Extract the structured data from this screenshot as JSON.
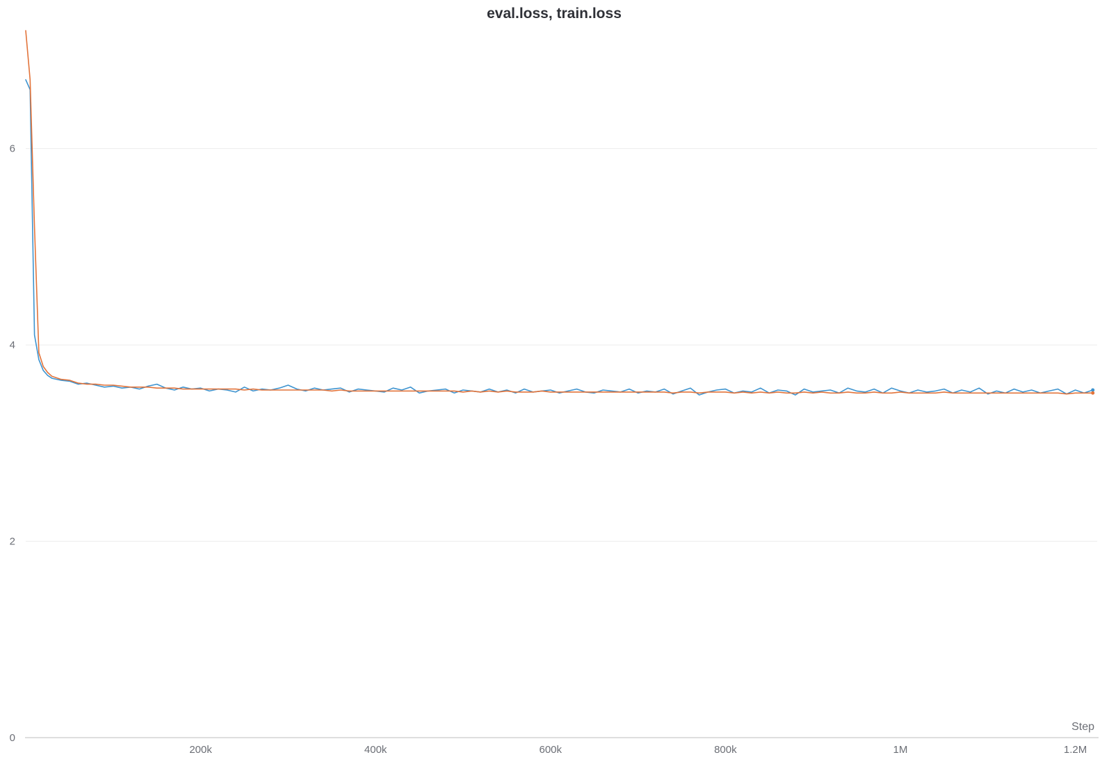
{
  "chart_data": {
    "type": "line",
    "title": "eval.loss, train.loss",
    "xlabel": "Step",
    "ylabel": "",
    "xlim": [
      0,
      1225000
    ],
    "ylim": [
      0,
      7.3
    ],
    "x_ticks": [
      200000,
      400000,
      600000,
      800000,
      1000000,
      1200000
    ],
    "x_tick_labels": [
      "200k",
      "400k",
      "600k",
      "800k",
      "1M",
      "1.2M"
    ],
    "y_ticks": [
      0,
      2,
      4,
      6
    ],
    "y_tick_labels": [
      "0",
      "2",
      "4",
      "6"
    ],
    "grid": true,
    "legend": "none",
    "colors": {
      "eval_loss": "#3d93cf",
      "train_loss": "#e2733a",
      "grid": "#ececec",
      "axis": "#bdbdbd",
      "tick_text": "#6b6e75",
      "title_text": "#2f3137"
    },
    "series": [
      {
        "key": "eval_loss",
        "x": [
          0,
          5000,
          10000,
          15000,
          20000,
          25000,
          30000,
          40000,
          50000,
          60000,
          70000,
          80000,
          90000,
          100000,
          110000,
          120000,
          130000,
          140000,
          150000,
          160000,
          170000,
          180000,
          190000,
          200000,
          210000,
          220000,
          230000,
          240000,
          250000,
          260000,
          270000,
          280000,
          290000,
          300000,
          310000,
          320000,
          330000,
          340000,
          350000,
          360000,
          370000,
          380000,
          390000,
          400000,
          410000,
          420000,
          430000,
          440000,
          450000,
          460000,
          470000,
          480000,
          490000,
          500000,
          510000,
          520000,
          530000,
          540000,
          550000,
          560000,
          570000,
          580000,
          590000,
          600000,
          610000,
          620000,
          630000,
          640000,
          650000,
          660000,
          670000,
          680000,
          690000,
          700000,
          710000,
          720000,
          730000,
          740000,
          750000,
          760000,
          770000,
          780000,
          790000,
          800000,
          810000,
          820000,
          830000,
          840000,
          850000,
          860000,
          870000,
          880000,
          890000,
          900000,
          910000,
          920000,
          930000,
          940000,
          950000,
          960000,
          970000,
          980000,
          990000,
          1000000,
          1010000,
          1020000,
          1030000,
          1040000,
          1050000,
          1060000,
          1070000,
          1080000,
          1090000,
          1100000,
          1110000,
          1120000,
          1130000,
          1140000,
          1150000,
          1160000,
          1170000,
          1180000,
          1190000,
          1200000,
          1210000,
          1220000
        ],
        "y": [
          6.7,
          6.6,
          4.1,
          3.85,
          3.74,
          3.69,
          3.66,
          3.64,
          3.63,
          3.6,
          3.61,
          3.59,
          3.57,
          3.58,
          3.56,
          3.57,
          3.55,
          3.58,
          3.6,
          3.56,
          3.54,
          3.57,
          3.55,
          3.56,
          3.53,
          3.55,
          3.54,
          3.52,
          3.57,
          3.53,
          3.55,
          3.54,
          3.56,
          3.59,
          3.55,
          3.53,
          3.56,
          3.54,
          3.55,
          3.56,
          3.52,
          3.55,
          3.54,
          3.53,
          3.52,
          3.56,
          3.54,
          3.57,
          3.51,
          3.53,
          3.54,
          3.55,
          3.51,
          3.54,
          3.53,
          3.52,
          3.55,
          3.52,
          3.54,
          3.51,
          3.55,
          3.52,
          3.53,
          3.54,
          3.51,
          3.53,
          3.55,
          3.52,
          3.51,
          3.54,
          3.53,
          3.52,
          3.55,
          3.51,
          3.53,
          3.52,
          3.55,
          3.5,
          3.53,
          3.56,
          3.49,
          3.52,
          3.54,
          3.55,
          3.51,
          3.53,
          3.52,
          3.56,
          3.51,
          3.54,
          3.53,
          3.49,
          3.55,
          3.52,
          3.53,
          3.54,
          3.51,
          3.56,
          3.53,
          3.52,
          3.55,
          3.51,
          3.56,
          3.53,
          3.51,
          3.54,
          3.52,
          3.53,
          3.55,
          3.51,
          3.54,
          3.52,
          3.56,
          3.5,
          3.53,
          3.51,
          3.55,
          3.52,
          3.54,
          3.51,
          3.53,
          3.55,
          3.5,
          3.54,
          3.51,
          3.54
        ]
      },
      {
        "key": "train_loss",
        "x": [
          0,
          5000,
          10000,
          15000,
          20000,
          25000,
          30000,
          40000,
          50000,
          60000,
          70000,
          80000,
          90000,
          100000,
          110000,
          120000,
          130000,
          140000,
          150000,
          160000,
          170000,
          180000,
          190000,
          200000,
          210000,
          220000,
          230000,
          240000,
          250000,
          260000,
          270000,
          280000,
          290000,
          300000,
          310000,
          320000,
          330000,
          340000,
          350000,
          360000,
          370000,
          380000,
          390000,
          400000,
          410000,
          420000,
          430000,
          440000,
          450000,
          460000,
          470000,
          480000,
          490000,
          500000,
          510000,
          520000,
          530000,
          540000,
          550000,
          560000,
          570000,
          580000,
          590000,
          600000,
          610000,
          620000,
          630000,
          640000,
          650000,
          660000,
          670000,
          680000,
          690000,
          700000,
          710000,
          720000,
          730000,
          740000,
          750000,
          760000,
          770000,
          780000,
          790000,
          800000,
          810000,
          820000,
          830000,
          840000,
          850000,
          860000,
          870000,
          880000,
          890000,
          900000,
          910000,
          920000,
          930000,
          940000,
          950000,
          960000,
          970000,
          980000,
          990000,
          1000000,
          1010000,
          1020000,
          1030000,
          1040000,
          1050000,
          1060000,
          1070000,
          1080000,
          1090000,
          1100000,
          1110000,
          1120000,
          1130000,
          1140000,
          1150000,
          1160000,
          1170000,
          1180000,
          1190000,
          1200000,
          1210000,
          1220000
        ],
        "y": [
          7.2,
          6.7,
          5.2,
          3.92,
          3.78,
          3.72,
          3.68,
          3.65,
          3.64,
          3.61,
          3.6,
          3.6,
          3.59,
          3.59,
          3.58,
          3.57,
          3.57,
          3.57,
          3.56,
          3.56,
          3.56,
          3.55,
          3.55,
          3.55,
          3.55,
          3.55,
          3.55,
          3.55,
          3.54,
          3.55,
          3.54,
          3.54,
          3.54,
          3.54,
          3.54,
          3.54,
          3.54,
          3.54,
          3.53,
          3.54,
          3.53,
          3.53,
          3.53,
          3.53,
          3.53,
          3.53,
          3.53,
          3.53,
          3.53,
          3.53,
          3.53,
          3.53,
          3.53,
          3.52,
          3.53,
          3.52,
          3.53,
          3.52,
          3.53,
          3.52,
          3.52,
          3.52,
          3.53,
          3.52,
          3.52,
          3.52,
          3.52,
          3.52,
          3.52,
          3.52,
          3.52,
          3.52,
          3.52,
          3.52,
          3.52,
          3.52,
          3.52,
          3.51,
          3.52,
          3.52,
          3.51,
          3.52,
          3.52,
          3.52,
          3.51,
          3.52,
          3.51,
          3.52,
          3.51,
          3.52,
          3.51,
          3.51,
          3.52,
          3.51,
          3.52,
          3.51,
          3.51,
          3.52,
          3.51,
          3.51,
          3.52,
          3.51,
          3.51,
          3.52,
          3.51,
          3.51,
          3.51,
          3.51,
          3.52,
          3.51,
          3.51,
          3.51,
          3.51,
          3.51,
          3.51,
          3.51,
          3.51,
          3.51,
          3.51,
          3.51,
          3.51,
          3.51,
          3.5,
          3.51,
          3.51,
          3.51
        ]
      }
    ]
  }
}
